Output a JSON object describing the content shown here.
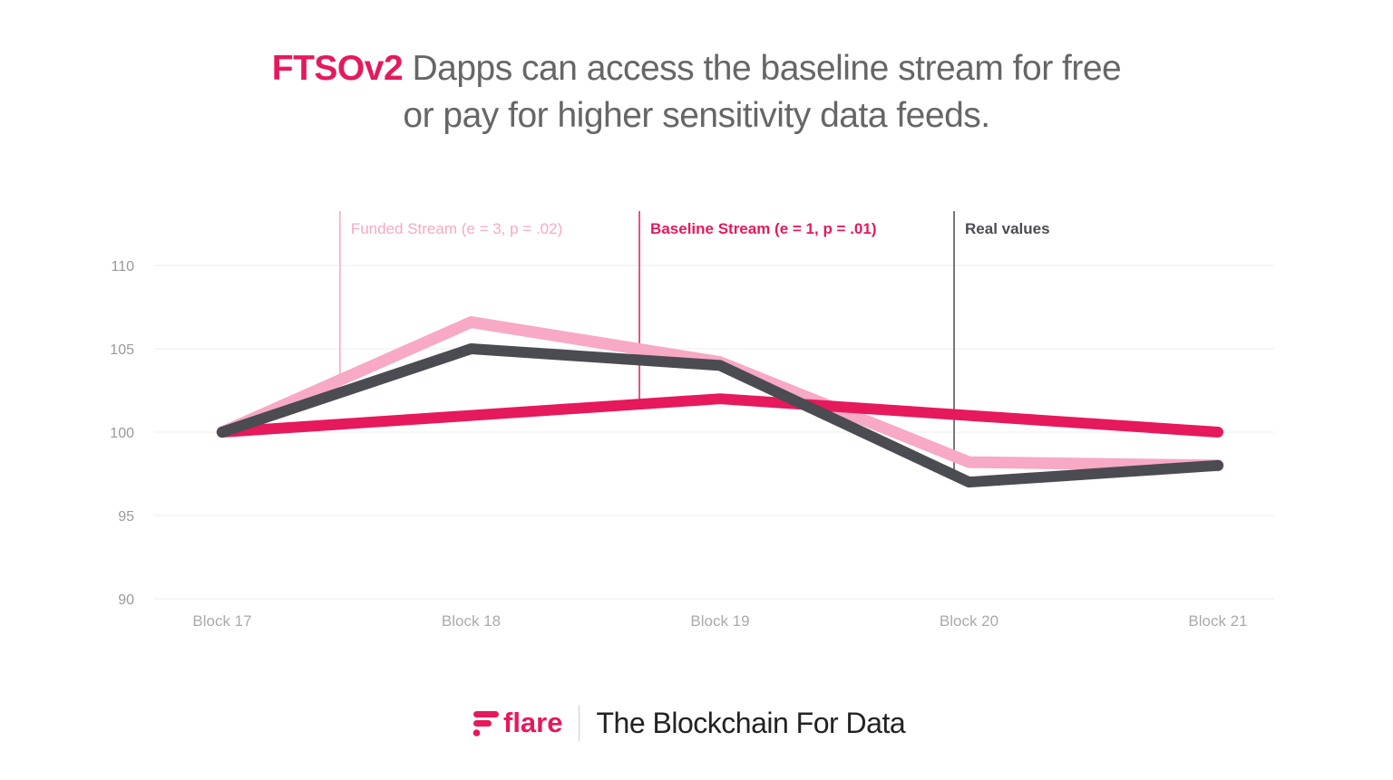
{
  "title": {
    "highlight": "FTSOv2",
    "line1": " Dapps can access the baseline stream for free",
    "line2": "or pay for higher sensitivity data feeds."
  },
  "footer": {
    "logo_text": "flare",
    "tagline": "The Blockchain For Data"
  },
  "chart_data": {
    "type": "line",
    "title": "",
    "xlabel": "",
    "ylabel": "",
    "categories": [
      "Block 17",
      "Block 18",
      "Block 19",
      "Block 20",
      "Block 21"
    ],
    "yticks": [
      "110",
      "105",
      "100",
      "95",
      "90"
    ],
    "ylim": [
      90,
      110
    ],
    "grid": true,
    "legend_placement": "top, annotation lines",
    "series": [
      {
        "name": "Funded Stream (e = 3, p = .02)",
        "color": "#f7a9c5",
        "values": [
          100,
          106.6,
          104.2,
          98.2,
          98
        ]
      },
      {
        "name": "Baseline Stream (e = 1, p = .01)",
        "color": "#e5195c",
        "values": [
          100,
          101,
          102,
          101,
          100
        ]
      },
      {
        "name": "Real values",
        "color": "#4b4b52",
        "values": [
          100,
          105,
          104,
          97,
          98
        ]
      }
    ]
  }
}
